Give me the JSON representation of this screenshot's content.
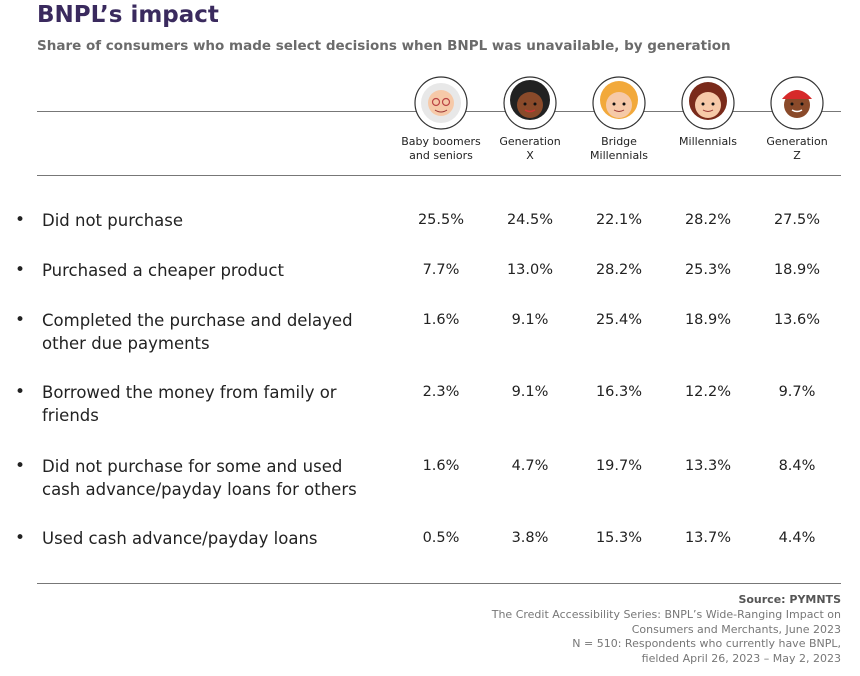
{
  "header": {
    "title": "BNPL’s impact",
    "subtitle": "Share of consumers who made select decisions when BNPL was unavailable, by generation"
  },
  "table": {
    "columns": [
      [
        "Baby boomers",
        "and seniors"
      ],
      [
        "Generation",
        "X"
      ],
      [
        "Bridge",
        "Millennials"
      ],
      [
        "Millennials"
      ],
      [
        "Generation",
        "Z"
      ]
    ],
    "rows": [
      {
        "label": [
          "Did not purchase"
        ],
        "values": [
          "25.5%",
          "24.5%",
          "22.1%",
          "28.2%",
          "27.5%"
        ]
      },
      {
        "label": [
          "Purchased a cheaper product"
        ],
        "values": [
          "7.7%",
          "13.0%",
          "28.2%",
          "25.3%",
          "18.9%"
        ]
      },
      {
        "label": [
          "Completed the purchase and delayed",
          "other due payments"
        ],
        "values": [
          "1.6%",
          "9.1%",
          "25.4%",
          "18.9%",
          "13.6%"
        ]
      },
      {
        "label": [
          "Borrowed the money from family or",
          "friends"
        ],
        "values": [
          "2.3%",
          "9.1%",
          "16.3%",
          "12.2%",
          "9.7%"
        ]
      },
      {
        "label": [
          "Did not purchase for some and used",
          "cash advance/payday loans for others"
        ],
        "values": [
          "1.6%",
          "4.7%",
          "19.7%",
          "13.3%",
          "8.4%"
        ]
      },
      {
        "label": [
          "Used cash advance/payday loans"
        ],
        "values": [
          "0.5%",
          "3.8%",
          "15.3%",
          "13.7%",
          "4.4%"
        ]
      }
    ]
  },
  "footer": {
    "source": "Source: PYMNTS",
    "notes": [
      [
        "The Credit Accessibility Series: BNPL’s Wide-Ranging Impact on",
        "Consumers and Merchants, June 2023"
      ],
      [
        "N = 510: Respondents who currently have BNPL,",
        "fielded April 26, 2023 – May 2, 2023"
      ]
    ]
  }
}
